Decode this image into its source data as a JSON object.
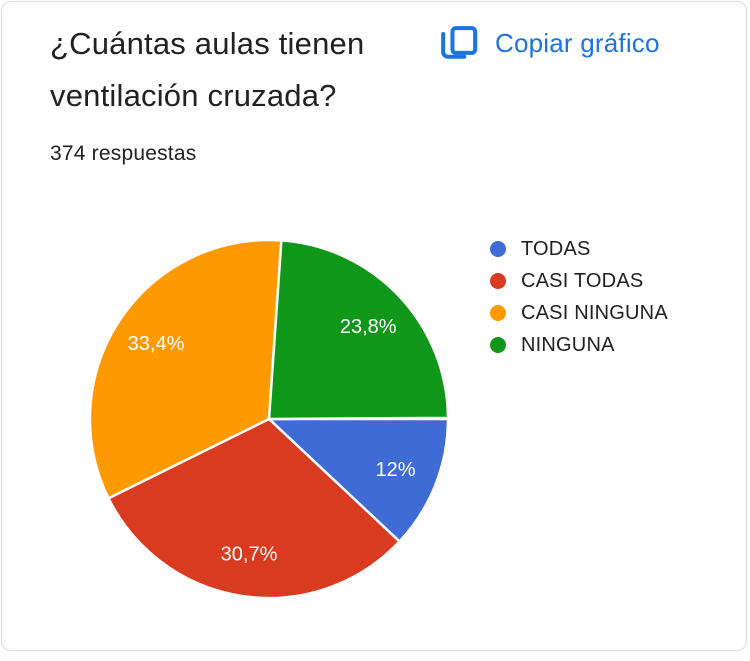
{
  "header": {
    "title": "¿Cuántas aulas tienen ventilación cruzada?",
    "responses": "374 respuestas",
    "copy_button_label": "Copiar gráfico",
    "link_color": "#1a73e8"
  },
  "chart_data": {
    "type": "pie",
    "title": "¿Cuántas aulas tienen ventilación cruzada?",
    "responses_total": 374,
    "categories": [
      "TODAS",
      "CASI TODAS",
      "CASI NINGUNA",
      "NINGUNA"
    ],
    "values": [
      12,
      30.7,
      33.4,
      23.8
    ],
    "labels": [
      "12%",
      "30,7%",
      "33,4%",
      "23,8%"
    ],
    "colors": [
      "#3E6CD4",
      "#D93B20",
      "#FF9900",
      "#109618"
    ],
    "start_angle_deg": 90,
    "direction": "clockwise",
    "legend_position": "right",
    "slice_border_color": "#ffffff",
    "label_color": "#ffffff"
  }
}
